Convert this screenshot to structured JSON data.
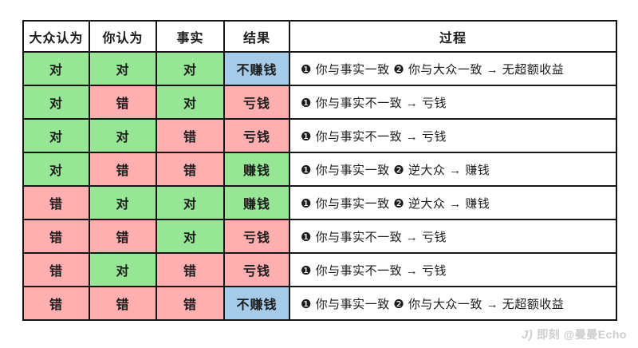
{
  "chart_data": {
    "type": "table",
    "headers": [
      "大众认为",
      "你认为",
      "事实",
      "结果",
      "过程"
    ],
    "rows": [
      {
        "cells": [
          {
            "text": "对",
            "bg": "green"
          },
          {
            "text": "对",
            "bg": "green"
          },
          {
            "text": "对",
            "bg": "green"
          },
          {
            "text": "不赚钱",
            "bg": "blue"
          }
        ],
        "process": "❶ 你与事实一致 ❷ 你与大众一致 →  无超额收益"
      },
      {
        "cells": [
          {
            "text": "对",
            "bg": "green"
          },
          {
            "text": "错",
            "bg": "pink"
          },
          {
            "text": "对",
            "bg": "green"
          },
          {
            "text": "亏钱",
            "bg": "pink"
          }
        ],
        "process": "❶ 你与事实不一致 →  亏钱"
      },
      {
        "cells": [
          {
            "text": "对",
            "bg": "green"
          },
          {
            "text": "对",
            "bg": "green"
          },
          {
            "text": "错",
            "bg": "pink"
          },
          {
            "text": "亏钱",
            "bg": "pink"
          }
        ],
        "process": "❶ 你与事实不一致 →  亏钱"
      },
      {
        "cells": [
          {
            "text": "对",
            "bg": "green"
          },
          {
            "text": "错",
            "bg": "pink"
          },
          {
            "text": "错",
            "bg": "pink"
          },
          {
            "text": "赚钱",
            "bg": "green"
          }
        ],
        "process": "❶ 你与事实一致 ❷ 逆大众 →  赚钱"
      },
      {
        "cells": [
          {
            "text": "错",
            "bg": "pink"
          },
          {
            "text": "对",
            "bg": "green"
          },
          {
            "text": "对",
            "bg": "green"
          },
          {
            "text": "赚钱",
            "bg": "green"
          }
        ],
        "process": "❶ 你与事实一致 ❷ 逆大众 →  赚钱"
      },
      {
        "cells": [
          {
            "text": "错",
            "bg": "pink"
          },
          {
            "text": "错",
            "bg": "pink"
          },
          {
            "text": "对",
            "bg": "green"
          },
          {
            "text": "亏钱",
            "bg": "pink"
          }
        ],
        "process": "❶ 你与事实不一致 →  亏钱"
      },
      {
        "cells": [
          {
            "text": "错",
            "bg": "pink"
          },
          {
            "text": "对",
            "bg": "green"
          },
          {
            "text": "错",
            "bg": "pink"
          },
          {
            "text": "亏钱",
            "bg": "pink"
          }
        ],
        "process": "❶ 你与事实不一致 →  亏钱"
      },
      {
        "cells": [
          {
            "text": "错",
            "bg": "pink"
          },
          {
            "text": "错",
            "bg": "pink"
          },
          {
            "text": "错",
            "bg": "pink"
          },
          {
            "text": "不赚钱",
            "bg": "blue"
          }
        ],
        "process": "❶ 你与事实一致 ❷ 你与大众一致 →  无超额收益"
      }
    ]
  },
  "colors": {
    "green": "#96e696",
    "pink": "#ffafaf",
    "blue": "#a5cbe9"
  },
  "watermark": {
    "logo": "J)",
    "text": "即刻 @曼曼Echo"
  }
}
